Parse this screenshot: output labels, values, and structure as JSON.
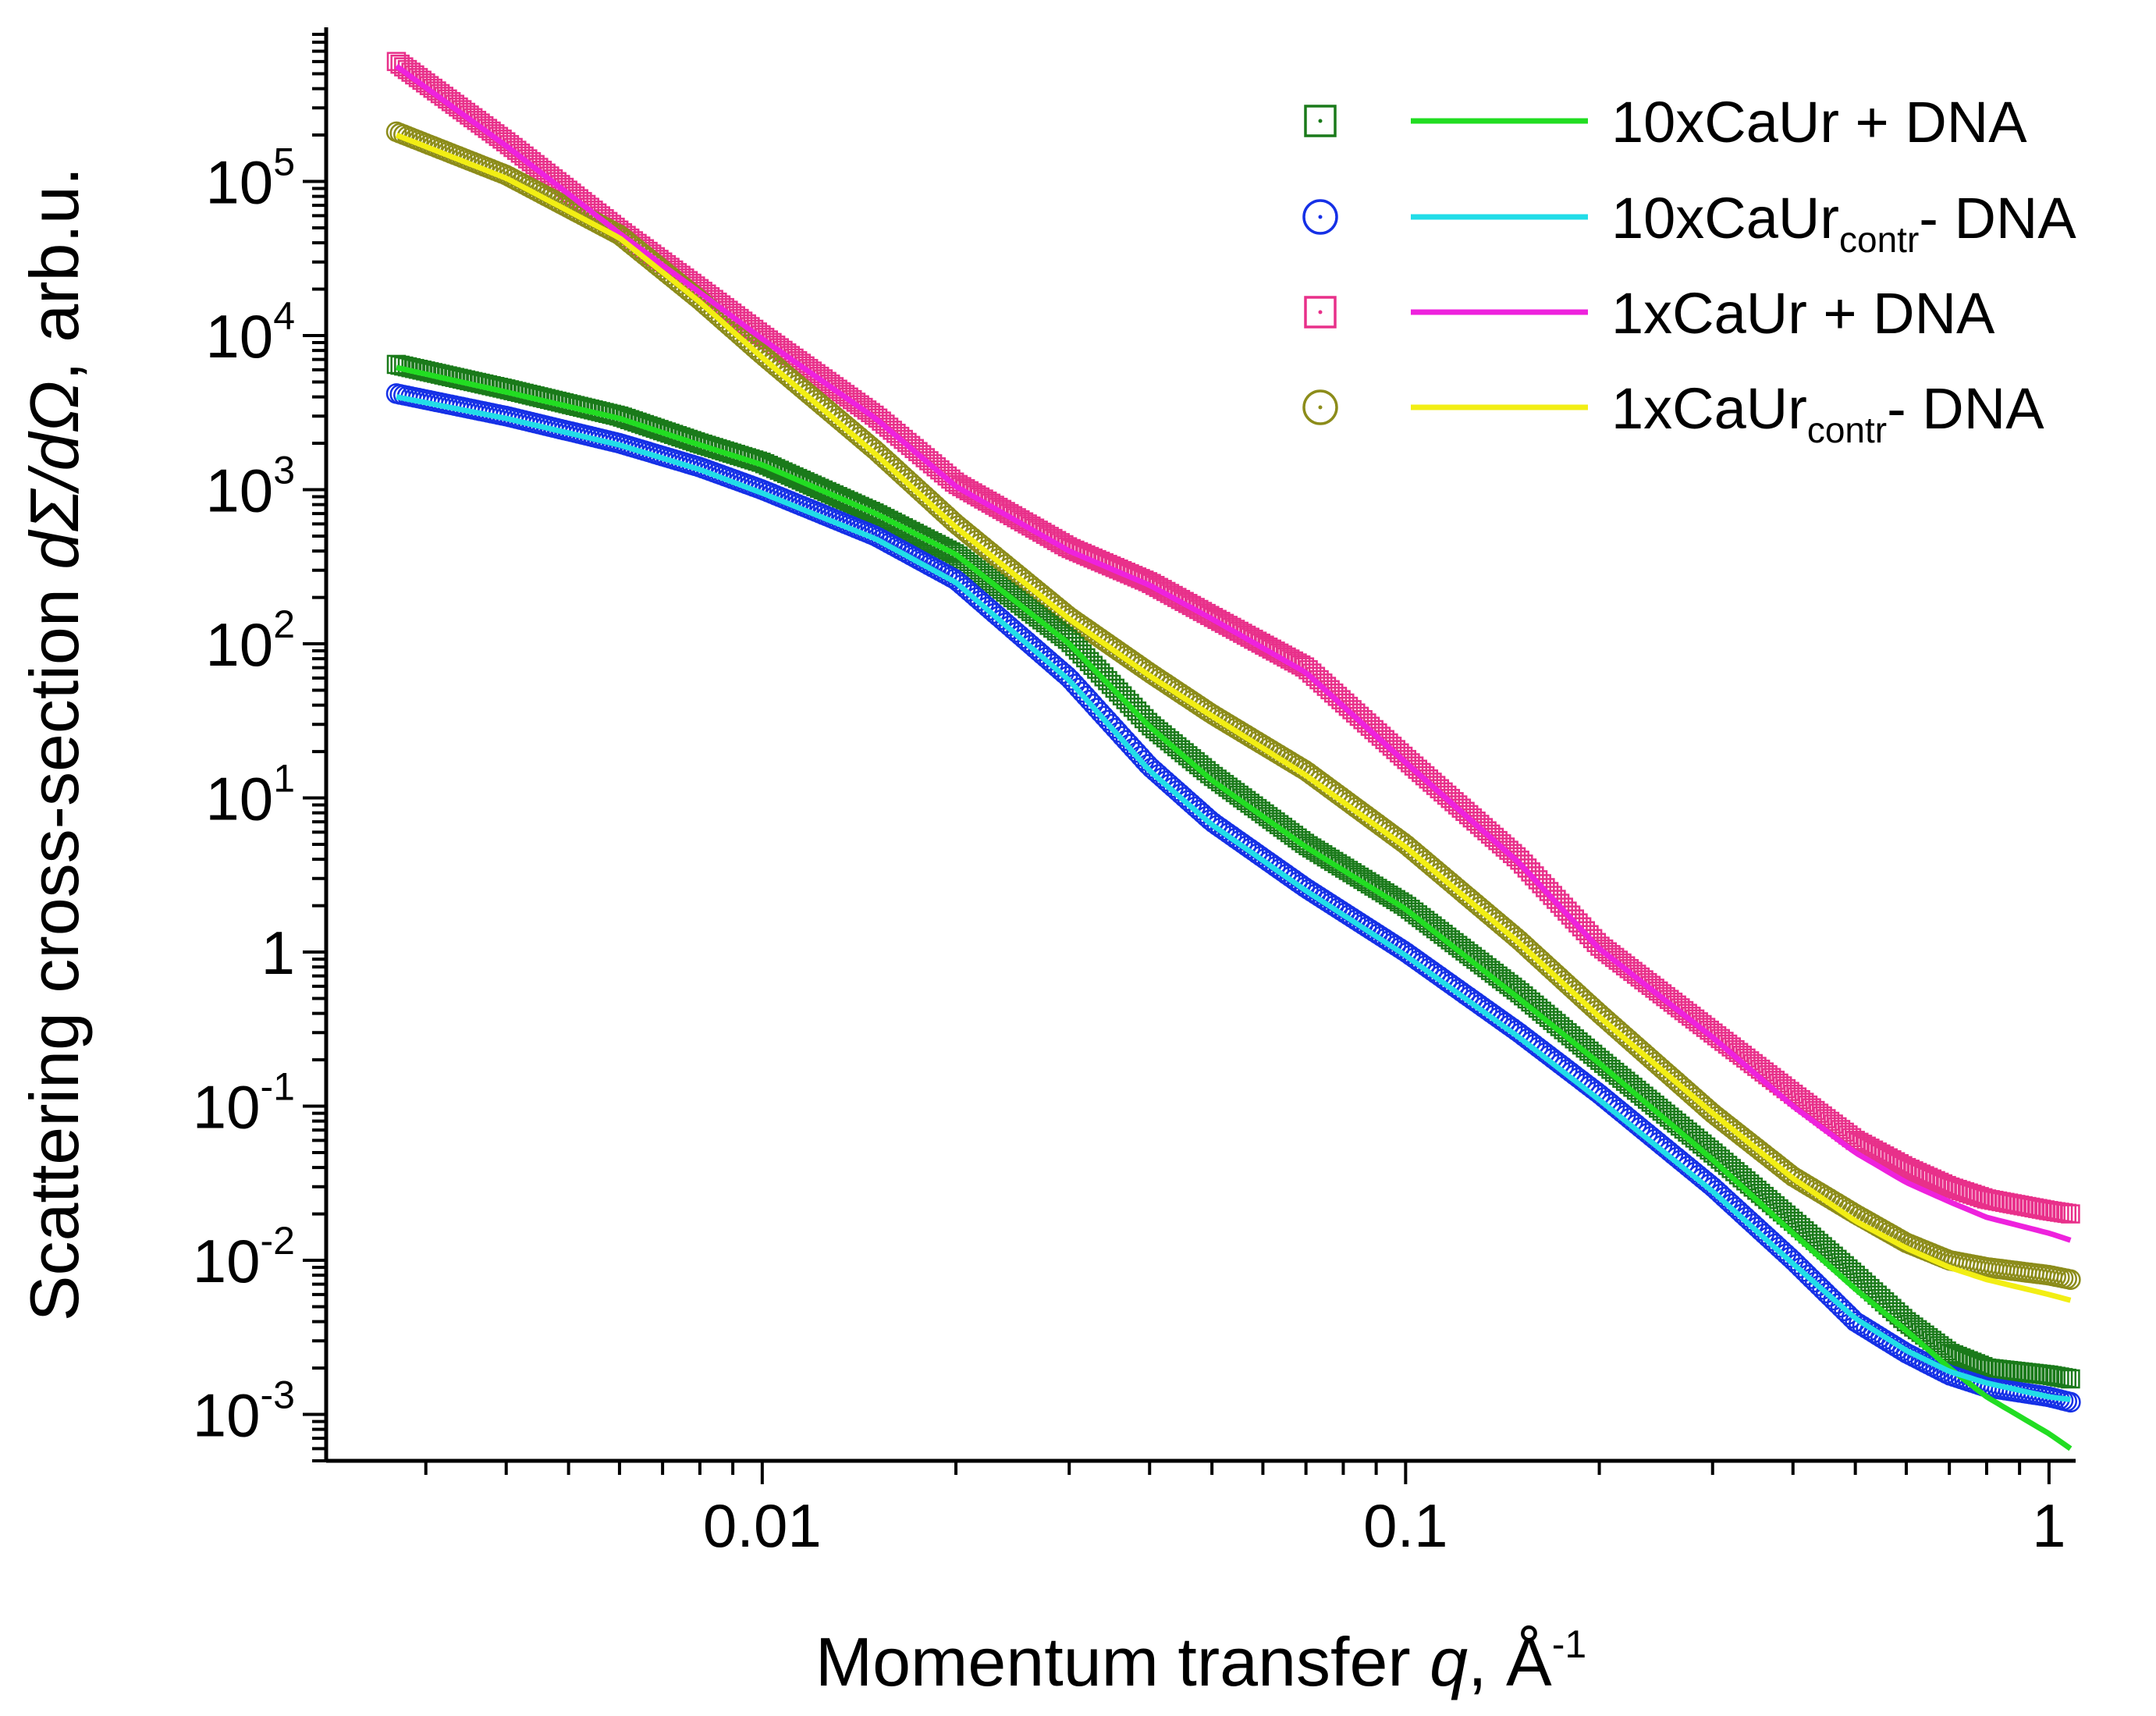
{
  "chart_data": {
    "type": "scatter",
    "xscale": "log",
    "yscale": "log",
    "xlim": [
      0.0021,
      1.1
    ],
    "ylim": [
      0.0005,
      1000000
    ],
    "xlabel": {
      "prefix": "Momentum transfer ",
      "var": "q",
      "suffix": ", Å",
      "sup": "-1"
    },
    "ylabel": {
      "prefix": "Scattering cross-section ",
      "var": "dΣ/dΩ",
      "suffix": ", arb.u."
    },
    "x_ticks": [
      {
        "value": 0.01,
        "label": "0.01"
      },
      {
        "value": 0.1,
        "label": "0.1"
      },
      {
        "value": 1,
        "label": "1"
      }
    ],
    "y_ticks": [
      {
        "value": 0.001,
        "base": "10",
        "exp": "-3"
      },
      {
        "value": 0.01,
        "base": "10",
        "exp": "-2"
      },
      {
        "value": 0.1,
        "base": "10",
        "exp": "-1"
      },
      {
        "value": 1,
        "base": "1",
        "exp": ""
      },
      {
        "value": 10,
        "base": "10",
        "exp": "1"
      },
      {
        "value": 100,
        "base": "10",
        "exp": "2"
      },
      {
        "value": 1000,
        "base": "10",
        "exp": "3"
      },
      {
        "value": 10000,
        "base": "10",
        "exp": "4"
      },
      {
        "value": 100000,
        "base": "10",
        "exp": "5"
      }
    ],
    "legend_position": "top-right",
    "series": [
      {
        "name": "10xCaUr + DNA",
        "label_main": "10xCaUr",
        "label_sub": "",
        "label_tail": " + DNA",
        "marker": "square",
        "marker_color": "#1a7a1a",
        "line_color": "#22dd22",
        "points": [
          [
            0.0027,
            6500
          ],
          [
            0.004,
            4500
          ],
          [
            0.006,
            3000
          ],
          [
            0.008,
            2000
          ],
          [
            0.01,
            1500
          ],
          [
            0.015,
            700
          ],
          [
            0.02,
            380
          ],
          [
            0.03,
            105
          ],
          [
            0.04,
            30
          ],
          [
            0.05,
            14
          ],
          [
            0.07,
            5
          ],
          [
            0.1,
            2
          ],
          [
            0.15,
            0.55
          ],
          [
            0.2,
            0.2
          ],
          [
            0.3,
            0.05
          ],
          [
            0.4,
            0.018
          ],
          [
            0.5,
            0.008
          ],
          [
            0.6,
            0.004
          ],
          [
            0.7,
            0.0025
          ],
          [
            0.8,
            0.002
          ],
          [
            1.0,
            0.0018
          ],
          [
            1.08,
            0.0017
          ]
        ],
        "fit": [
          [
            0.0027,
            6200
          ],
          [
            0.004,
            4300
          ],
          [
            0.006,
            2900
          ],
          [
            0.008,
            1950
          ],
          [
            0.01,
            1450
          ],
          [
            0.015,
            700
          ],
          [
            0.02,
            380
          ],
          [
            0.03,
            100
          ],
          [
            0.04,
            29
          ],
          [
            0.05,
            13
          ],
          [
            0.07,
            4.8
          ],
          [
            0.1,
            1.9
          ],
          [
            0.15,
            0.5
          ],
          [
            0.2,
            0.19
          ],
          [
            0.3,
            0.045
          ],
          [
            0.4,
            0.015
          ],
          [
            0.5,
            0.0065
          ],
          [
            0.6,
            0.0035
          ],
          [
            0.7,
            0.002
          ],
          [
            0.8,
            0.0013
          ],
          [
            1.0,
            0.00075
          ],
          [
            1.08,
            0.0006
          ]
        ]
      },
      {
        "name": "10xCaUrcontr- DNA",
        "label_main": "10xCaUr",
        "label_sub": "contr",
        "label_tail": "- DNA",
        "marker": "circle",
        "marker_color": "#1530e6",
        "line_color": "#22dde8",
        "points": [
          [
            0.0027,
            4200
          ],
          [
            0.004,
            3000
          ],
          [
            0.006,
            2000
          ],
          [
            0.008,
            1400
          ],
          [
            0.01,
            1000
          ],
          [
            0.015,
            500
          ],
          [
            0.02,
            260
          ],
          [
            0.03,
            60
          ],
          [
            0.04,
            16
          ],
          [
            0.05,
            7
          ],
          [
            0.07,
            2.6
          ],
          [
            0.1,
            1
          ],
          [
            0.15,
            0.3
          ],
          [
            0.2,
            0.12
          ],
          [
            0.3,
            0.03
          ],
          [
            0.4,
            0.01
          ],
          [
            0.5,
            0.004
          ],
          [
            0.6,
            0.0025
          ],
          [
            0.7,
            0.0018
          ],
          [
            0.8,
            0.0015
          ],
          [
            1.0,
            0.0013
          ],
          [
            1.08,
            0.0012
          ]
        ],
        "fit": [
          [
            0.0027,
            4000
          ],
          [
            0.004,
            2900
          ],
          [
            0.006,
            1950
          ],
          [
            0.008,
            1350
          ],
          [
            0.01,
            950
          ],
          [
            0.015,
            480
          ],
          [
            0.02,
            250
          ],
          [
            0.03,
            58
          ],
          [
            0.04,
            15
          ],
          [
            0.05,
            6.7
          ],
          [
            0.07,
            2.5
          ],
          [
            0.1,
            0.95
          ],
          [
            0.15,
            0.28
          ],
          [
            0.2,
            0.11
          ],
          [
            0.3,
            0.028
          ],
          [
            0.4,
            0.0095
          ],
          [
            0.5,
            0.0042
          ],
          [
            0.6,
            0.0026
          ],
          [
            0.7,
            0.0019
          ],
          [
            0.8,
            0.0016
          ],
          [
            1.0,
            0.0013
          ],
          [
            1.08,
            0.00125
          ]
        ]
      },
      {
        "name": "1xCaUr + DNA",
        "label_main": "1xCaUr",
        "label_sub": "",
        "label_tail": " + DNA",
        "marker": "square",
        "marker_color": "#e8308a",
        "line_color": "#ee22dd",
        "points": [
          [
            0.0027,
            600000
          ],
          [
            0.004,
            180000
          ],
          [
            0.006,
            48000
          ],
          [
            0.008,
            20000
          ],
          [
            0.01,
            10000
          ],
          [
            0.015,
            3000
          ],
          [
            0.02,
            1100
          ],
          [
            0.03,
            420
          ],
          [
            0.04,
            250
          ],
          [
            0.05,
            150
          ],
          [
            0.07,
            70
          ],
          [
            0.1,
            18
          ],
          [
            0.15,
            4
          ],
          [
            0.2,
            1.1
          ],
          [
            0.3,
            0.3
          ],
          [
            0.4,
            0.12
          ],
          [
            0.5,
            0.06
          ],
          [
            0.6,
            0.04
          ],
          [
            0.7,
            0.03
          ],
          [
            0.8,
            0.025
          ],
          [
            1.0,
            0.021
          ],
          [
            1.08,
            0.02
          ]
        ],
        "fit": [
          [
            0.0027,
            560000
          ],
          [
            0.004,
            170000
          ],
          [
            0.006,
            46000
          ],
          [
            0.008,
            19000
          ],
          [
            0.01,
            9500
          ],
          [
            0.015,
            2900
          ],
          [
            0.02,
            1050
          ],
          [
            0.03,
            400
          ],
          [
            0.04,
            240
          ],
          [
            0.05,
            145
          ],
          [
            0.07,
            65
          ],
          [
            0.1,
            17
          ],
          [
            0.15,
            3.8
          ],
          [
            0.2,
            1.05
          ],
          [
            0.3,
            0.28
          ],
          [
            0.4,
            0.1
          ],
          [
            0.5,
            0.05
          ],
          [
            0.6,
            0.032
          ],
          [
            0.7,
            0.024
          ],
          [
            0.8,
            0.019
          ],
          [
            1.0,
            0.015
          ],
          [
            1.08,
            0.0135
          ]
        ]
      },
      {
        "name": "1xCaUrcontr- DNA",
        "label_main": "1xCaUr",
        "label_sub": "contr",
        "label_tail": "- DNA",
        "marker": "circle",
        "marker_color": "#8c8c1a",
        "line_color": "#f2ee14",
        "points": [
          [
            0.0027,
            210000
          ],
          [
            0.004,
            110000
          ],
          [
            0.006,
            45000
          ],
          [
            0.008,
            17000
          ],
          [
            0.01,
            7500
          ],
          [
            0.015,
            1800
          ],
          [
            0.02,
            600
          ],
          [
            0.03,
            150
          ],
          [
            0.04,
            65
          ],
          [
            0.05,
            35
          ],
          [
            0.07,
            15
          ],
          [
            0.1,
            5
          ],
          [
            0.15,
            1.2
          ],
          [
            0.2,
            0.4
          ],
          [
            0.3,
            0.09
          ],
          [
            0.4,
            0.035
          ],
          [
            0.5,
            0.02
          ],
          [
            0.6,
            0.013
          ],
          [
            0.7,
            0.01
          ],
          [
            0.8,
            0.009
          ],
          [
            1.0,
            0.008
          ],
          [
            1.08,
            0.0075
          ]
        ],
        "fit": [
          [
            0.0027,
            200000
          ],
          [
            0.004,
            105000
          ],
          [
            0.006,
            43000
          ],
          [
            0.008,
            16500
          ],
          [
            0.01,
            7200
          ],
          [
            0.015,
            1700
          ],
          [
            0.02,
            570
          ],
          [
            0.03,
            145
          ],
          [
            0.04,
            62
          ],
          [
            0.05,
            34
          ],
          [
            0.07,
            14
          ],
          [
            0.1,
            4.8
          ],
          [
            0.15,
            1.15
          ],
          [
            0.2,
            0.38
          ],
          [
            0.3,
            0.09
          ],
          [
            0.4,
            0.034
          ],
          [
            0.5,
            0.018
          ],
          [
            0.6,
            0.012
          ],
          [
            0.7,
            0.009
          ],
          [
            0.8,
            0.0075
          ],
          [
            1.0,
            0.006
          ],
          [
            1.08,
            0.0055
          ]
        ]
      }
    ]
  }
}
